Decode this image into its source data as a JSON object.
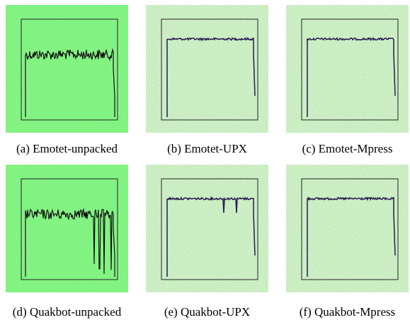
{
  "panels": [
    {
      "caption": "(a) Emotet-unpacked"
    },
    {
      "caption": "(b) Emotet-UPX"
    },
    {
      "caption": "(c) Emotet-Mpress"
    },
    {
      "caption": "(d) Quakbot-unpacked"
    },
    {
      "caption": "(e) Quakbot-UPX"
    },
    {
      "caption": "(f) Quakbot-Mpress"
    }
  ]
}
